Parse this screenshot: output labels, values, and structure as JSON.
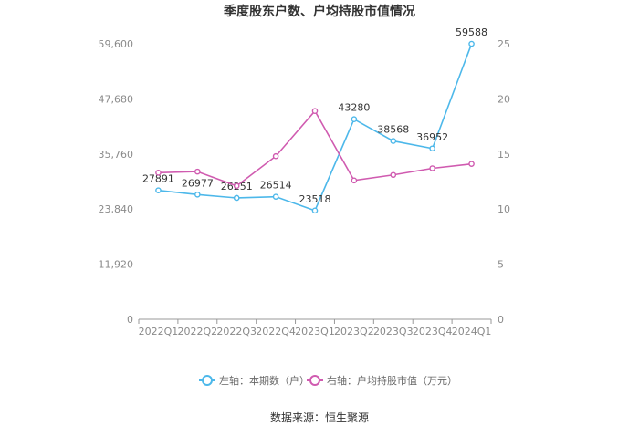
{
  "chart_data": {
    "type": "line",
    "title": "季度股东户数、户均持股市值情况",
    "categories": [
      "2022Q1",
      "2022Q2",
      "2022Q3",
      "2022Q4",
      "2023Q1",
      "2023Q2",
      "2023Q3",
      "2023Q4",
      "2024Q1"
    ],
    "left_axis": {
      "ticks": [
        "0",
        "11,920",
        "23,840",
        "35,760",
        "47,680",
        "59,600"
      ],
      "ylim": [
        0,
        59600
      ]
    },
    "right_axis": {
      "ticks": [
        "0",
        "5",
        "10",
        "15",
        "20",
        "25"
      ],
      "ylim": [
        0,
        25
      ]
    },
    "series": [
      {
        "name": "左轴：本期数（户）",
        "axis": "left",
        "color": "#4db8ea",
        "values": [
          27891,
          26977,
          26251,
          26514,
          23518,
          43280,
          38568,
          36952,
          59588
        ],
        "labels": [
          "27891",
          "26977",
          "26251",
          "26514",
          "23518",
          "43280",
          "38568",
          "36952",
          "59588"
        ]
      },
      {
        "name": "右轴：户均持股市值（万元）",
        "axis": "right",
        "color": "#d05bb0",
        "values": [
          13.3,
          13.4,
          12.1,
          14.8,
          18.9,
          12.6,
          13.1,
          13.7,
          14.1
        ]
      }
    ],
    "legend_position": "bottom",
    "grid": false
  },
  "source": "数据来源：恒生聚源"
}
